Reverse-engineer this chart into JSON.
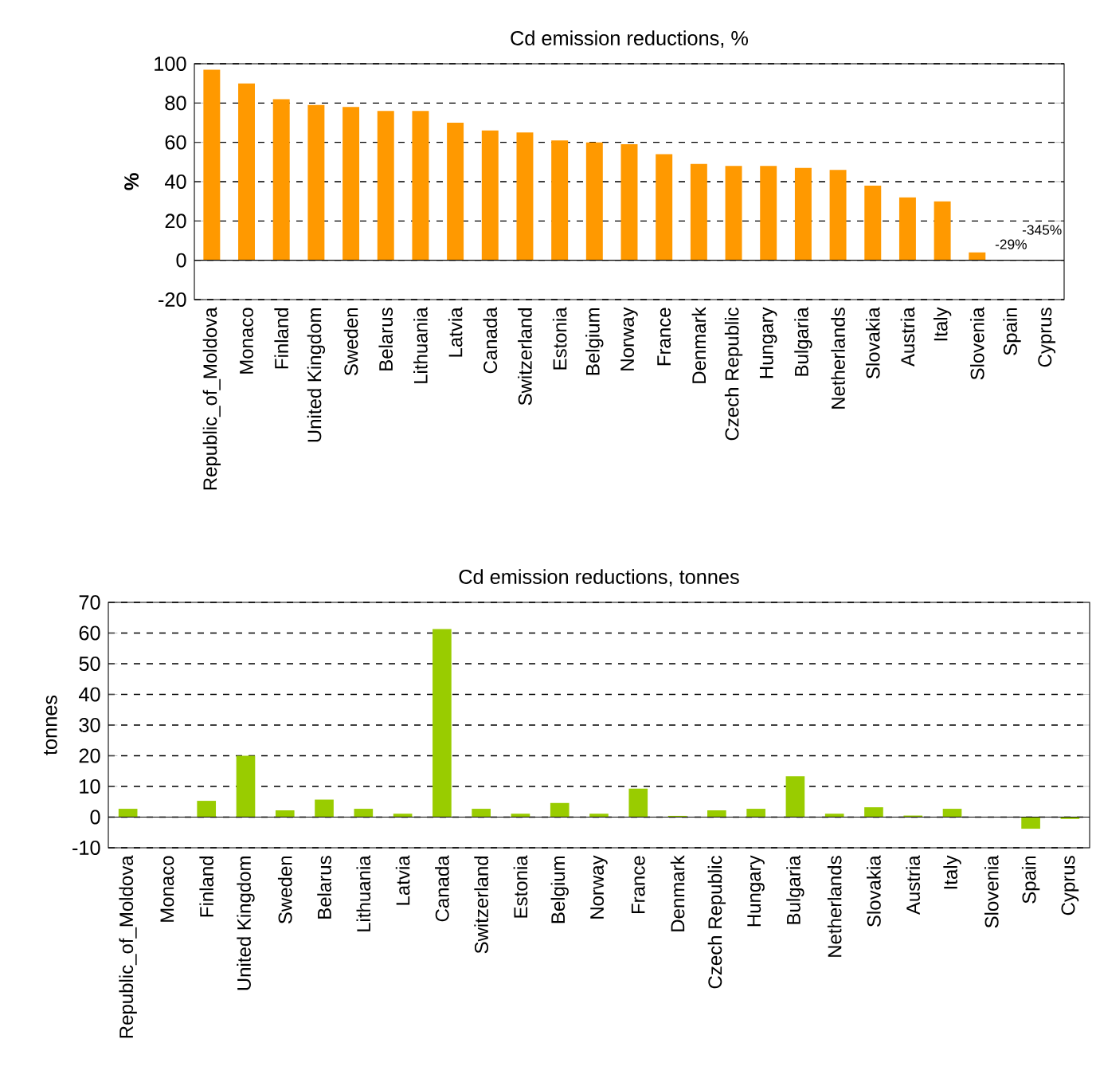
{
  "chart_data": [
    {
      "type": "bar",
      "title": "Cd emission reductions, %",
      "ylabel": "%",
      "categories": [
        "Republic_of_Moldova",
        "Monaco",
        "Finland",
        "United Kingdom",
        "Sweden",
        "Belarus",
        "Lithuania",
        "Latvia",
        "Canada",
        "Switzerland",
        "Estonia",
        "Belgium",
        "Norway",
        "France",
        "Denmark",
        "Czech Republic",
        "Hungary",
        "Bulgaria",
        "Netherlands",
        "Slovakia",
        "Austria",
        "Italy",
        "Slovenia",
        "Spain",
        "Cyprus"
      ],
      "values": [
        97,
        90,
        82,
        79,
        78,
        76,
        76,
        70,
        66,
        65,
        61,
        60,
        59,
        54,
        49,
        48,
        48,
        47,
        46,
        38,
        32,
        30,
        4,
        null,
        null
      ],
      "value_labels": [
        null,
        null,
        null,
        null,
        null,
        null,
        null,
        null,
        null,
        null,
        null,
        null,
        null,
        null,
        null,
        null,
        null,
        null,
        null,
        null,
        null,
        null,
        null,
        "-29%",
        "-345%"
      ],
      "color": "#ff9900",
      "ylim": [
        -20,
        100
      ],
      "yticks": [
        -20,
        0,
        20,
        40,
        60,
        80,
        100
      ],
      "grid": "y"
    },
    {
      "type": "bar",
      "title": "Cd emission reductions, tonnes",
      "ylabel": "tonnes",
      "categories": [
        "Republic_of_Moldova",
        "Monaco",
        "Finland",
        "United Kingdom",
        "Sweden",
        "Belarus",
        "Lithuania",
        "Latvia",
        "Canada",
        "Switzerland",
        "Estonia",
        "Belgium",
        "Norway",
        "France",
        "Denmark",
        "Czech Republic",
        "Hungary",
        "Bulgaria",
        "Netherlands",
        "Slovakia",
        "Austria",
        "Italy",
        "Slovenia",
        "Spain",
        "Cyprus"
      ],
      "values": [
        2.7,
        0,
        5.3,
        20,
        2.2,
        5.7,
        2.7,
        1.1,
        61.3,
        2.7,
        1.1,
        4.6,
        1.1,
        9.3,
        0.4,
        2.2,
        2.7,
        13.3,
        1.1,
        3.2,
        0.5,
        2.7,
        0,
        -3.8,
        -0.6
      ],
      "color": "#99cc00",
      "ylim": [
        -10,
        70
      ],
      "yticks": [
        -10,
        0,
        10,
        20,
        30,
        40,
        50,
        60,
        70
      ],
      "grid": "y"
    }
  ]
}
